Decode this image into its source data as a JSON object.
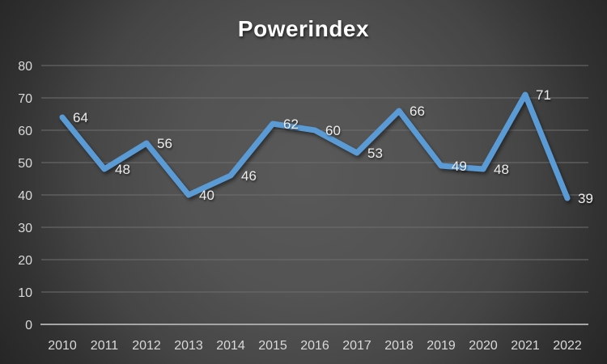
{
  "chart_data": {
    "type": "line",
    "title": "Powerindex",
    "categories": [
      "2010",
      "2011",
      "2012",
      "2013",
      "2014",
      "2015",
      "2016",
      "2017",
      "2018",
      "2019",
      "2020",
      "2021",
      "2022"
    ],
    "series": [
      {
        "name": "Powerindex",
        "values": [
          64,
          48,
          56,
          40,
          46,
          62,
          60,
          53,
          66,
          49,
          48,
          71,
          39
        ]
      }
    ],
    "xlabel": "",
    "ylabel": "",
    "ylim": [
      0,
      80
    ],
    "ytick_step": 10,
    "yticks": [
      0,
      10,
      20,
      30,
      40,
      50,
      60,
      70,
      80
    ],
    "grid": true,
    "legend_position": "none",
    "data_labels": true,
    "data_label_position": "right",
    "colors": {
      "line": "#5B9BD5",
      "title": "#FFFFFF",
      "tick_label": "#D9D9D9",
      "data_label": "#EDEDED",
      "gridline": "#6E6E6E",
      "axis_line": "#A6A6A6",
      "background_center": "#595959",
      "background_edge": "#262626"
    }
  }
}
